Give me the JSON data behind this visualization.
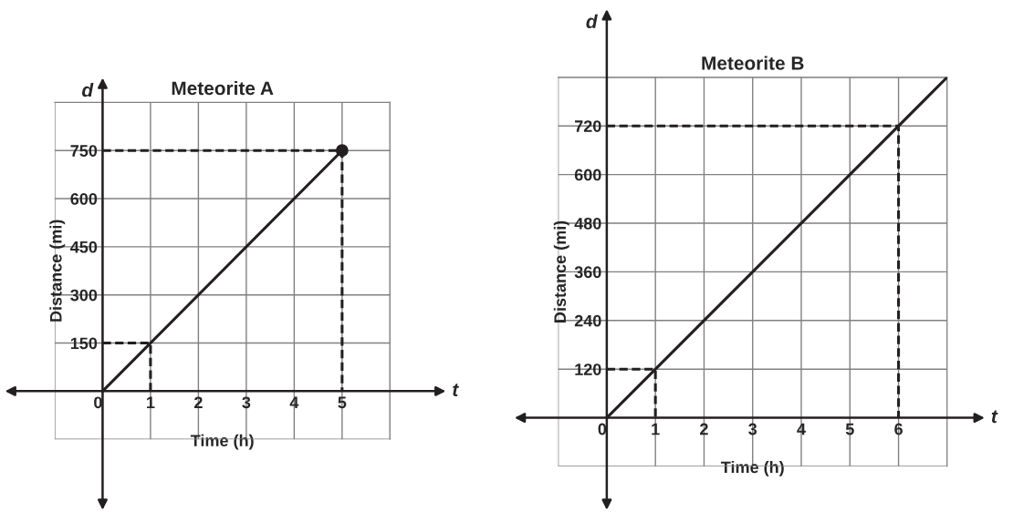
{
  "chart_data": [
    {
      "type": "line",
      "title": "Meteorite A",
      "xlabel": "Time (h)",
      "ylabel": "Distance (mi)",
      "annotations": [
        "d",
        "t"
      ],
      "grid": true,
      "legend": false,
      "xlim": [
        -1,
        6
      ],
      "ylim": [
        -150,
        900
      ],
      "xticks": [
        {
          "value": -1,
          "label": null
        },
        0,
        1,
        2,
        3,
        4,
        5,
        {
          "value": 6,
          "label": null
        }
      ],
      "yticks": [
        {
          "value": -150,
          "label": null
        },
        150,
        300,
        450,
        600,
        750,
        {
          "value": 900,
          "label": null
        }
      ],
      "series": [
        {
          "color": "#231f20",
          "line_style": "solid",
          "x": [
            0,
            5
          ],
          "values": [
            0,
            750
          ]
        },
        {
          "type": "scatter",
          "color": "#231f20",
          "marker": "circle",
          "x": [
            5
          ],
          "values": [
            750
          ]
        },
        {
          "type": "line",
          "color": "#231f20",
          "line_style": "dashed",
          "x": [
            0,
            1,
            1
          ],
          "values": [
            150,
            150,
            0
          ]
        },
        {
          "type": "line",
          "color": "#231f20",
          "line_style": "dashed",
          "x": [
            0,
            5,
            5
          ],
          "values": [
            750,
            750,
            0
          ]
        }
      ]
    },
    {
      "type": "line",
      "title": "Meteorite B",
      "xlabel": "Time (h)",
      "ylabel": "Distance (mi)",
      "annotations": [
        "d",
        "t"
      ],
      "grid": true,
      "legend": false,
      "xlim": [
        -1,
        7
      ],
      "ylim": [
        -120,
        840
      ],
      "xticks": [
        {
          "value": -1,
          "label": null
        },
        0,
        1,
        2,
        3,
        4,
        5,
        6,
        {
          "value": 7,
          "label": null
        }
      ],
      "yticks": [
        {
          "value": -120,
          "label": null
        },
        120,
        240,
        360,
        480,
        600,
        720,
        {
          "value": 840,
          "label": null
        }
      ],
      "series": [
        {
          "color": "#231f20",
          "line_style": "solid",
          "x": [
            0,
            7
          ],
          "values": [
            0,
            840
          ]
        },
        {
          "type": "line",
          "color": "#231f20",
          "line_style": "dashed",
          "x": [
            0,
            1,
            1
          ],
          "values": [
            120,
            120,
            0
          ]
        },
        {
          "type": "line",
          "color": "#231f20",
          "line_style": "dashed",
          "x": [
            0,
            6,
            6
          ],
          "values": [
            720,
            720,
            0
          ]
        }
      ]
    }
  ]
}
